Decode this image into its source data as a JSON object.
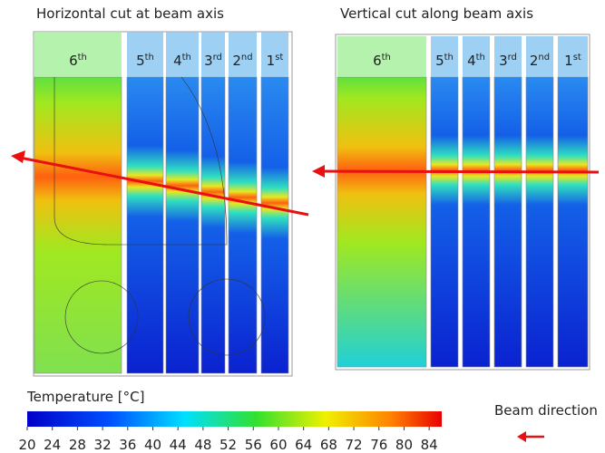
{
  "panels": [
    {
      "title": "Horizontal cut at beam axis",
      "layers": [
        {
          "number": "6",
          "suffix": "th"
        },
        {
          "number": "5",
          "suffix": "th"
        },
        {
          "number": "4",
          "suffix": "th"
        },
        {
          "number": "3",
          "suffix": "rd"
        },
        {
          "number": "2",
          "suffix": "nd"
        },
        {
          "number": "1",
          "suffix": "st"
        }
      ]
    },
    {
      "title": "Vertical cut along beam axis",
      "layers": [
        {
          "number": "6",
          "suffix": "th"
        },
        {
          "number": "5",
          "suffix": "th"
        },
        {
          "number": "4",
          "suffix": "th"
        },
        {
          "number": "3",
          "suffix": "rd"
        },
        {
          "number": "2",
          "suffix": "nd"
        },
        {
          "number": "1",
          "suffix": "st"
        }
      ]
    }
  ],
  "colorbar": {
    "label": "Temperature [°C]",
    "lim": [
      20,
      86
    ],
    "ticks": [
      20,
      24,
      28,
      32,
      36,
      40,
      44,
      48,
      52,
      56,
      60,
      64,
      68,
      72,
      76,
      80,
      84
    ]
  },
  "beam_label": "Beam direction"
}
